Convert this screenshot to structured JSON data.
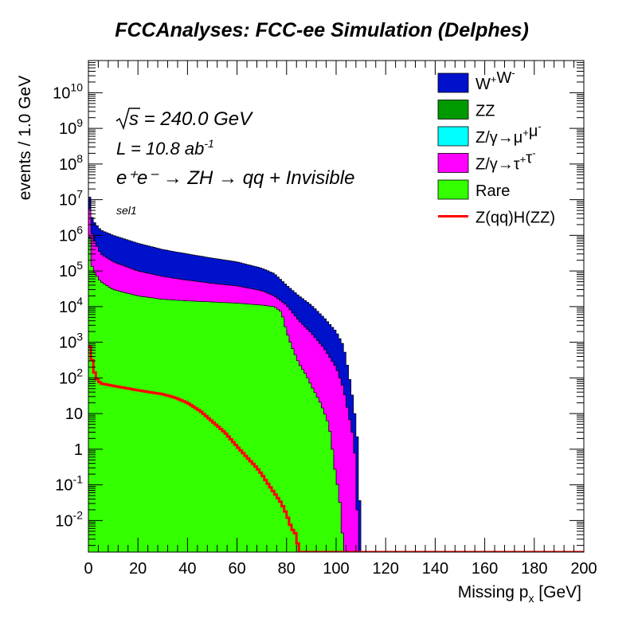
{
  "chart_data": {
    "type": "area",
    "title": "FCCAnalyses: FCC-ee Simulation (Delphes)",
    "xlabel": "Missing p_x [GeV]",
    "ylabel": "events / 1.0 GeV",
    "xlim": [
      0,
      200
    ],
    "ylim": [
      0.0013,
      80000000000.0
    ],
    "yscale": "log",
    "grid": false,
    "legend_position": "top-right",
    "x_ticks": [
      "0",
      "20",
      "40",
      "60",
      "80",
      "100",
      "120",
      "140",
      "160",
      "180",
      "200"
    ],
    "y_ticks": [
      {
        "value": 0.01,
        "label": "10^-2"
      },
      {
        "value": 0.1,
        "label": "10^-1"
      },
      {
        "value": 1,
        "label": "1"
      },
      {
        "value": 10,
        "label": "10"
      },
      {
        "value": 100,
        "label": "10^2"
      },
      {
        "value": 1000,
        "label": "10^3"
      },
      {
        "value": 10000,
        "label": "10^4"
      },
      {
        "value": 100000,
        "label": "10^5"
      },
      {
        "value": 1000000,
        "label": "10^6"
      },
      {
        "value": 10000000,
        "label": "10^7"
      },
      {
        "value": 100000000,
        "label": "10^8"
      },
      {
        "value": 1000000000,
        "label": "10^9"
      },
      {
        "value": 10000000000,
        "label": "10^10"
      }
    ],
    "annotations": {
      "sqrt_s": "s = 240.0 GeV",
      "lumi": "L = 10.8 ab",
      "lumi_exp": "-1",
      "process": "e⁺e⁻ → ZH → qq + Invisible",
      "selection": "sel1"
    },
    "stack_order": [
      "Rare",
      "ZZ",
      "Z/γ→μ⁺μ⁻",
      "Z/γ→τ⁺τ⁻",
      "W⁺W⁻"
    ],
    "series": [
      {
        "name": "W⁺W⁻",
        "kind": "stack",
        "color": "#0011cc",
        "points": [
          [
            0,
            35000000.0
          ],
          [
            1,
            4000000.0
          ],
          [
            2,
            2500000.0
          ],
          [
            5,
            1400000.0
          ],
          [
            10,
            1000000.0
          ],
          [
            20,
            600000.0
          ],
          [
            30,
            400000.0
          ],
          [
            40,
            300000.0
          ],
          [
            50,
            230000.0
          ],
          [
            60,
            180000.0
          ],
          [
            70,
            120000.0
          ],
          [
            75,
            85000.0
          ],
          [
            80,
            40000.0
          ],
          [
            85,
            20000.0
          ],
          [
            90,
            11000.0
          ],
          [
            95,
            5000.0
          ],
          [
            100,
            2000.0
          ],
          [
            103,
            800
          ],
          [
            105,
            150
          ],
          [
            107,
            20
          ],
          [
            108,
            5
          ],
          [
            109,
            1
          ],
          [
            110,
            0.0013
          ]
        ]
      },
      {
        "name": "ZZ",
        "kind": "stack",
        "color": "#009900",
        "points": [
          [
            0,
            2500000.0
          ],
          [
            1,
            130000.0
          ],
          [
            2,
            70000.0
          ],
          [
            5,
            30000.0
          ],
          [
            10,
            20000.0
          ],
          [
            20,
            15000.0
          ],
          [
            30,
            13000.0
          ],
          [
            40,
            12500.0
          ],
          [
            50,
            12000.0
          ],
          [
            60,
            11500.0
          ],
          [
            70,
            10000.0
          ],
          [
            75,
            9000.0
          ],
          [
            78,
            6000.0
          ],
          [
            80,
            1500.0
          ],
          [
            82,
            500
          ],
          [
            85,
            150
          ],
          [
            88,
            80
          ],
          [
            90,
            40
          ],
          [
            93,
            15
          ],
          [
            95,
            8
          ],
          [
            97,
            3
          ],
          [
            98,
            1
          ],
          [
            99,
            0.3
          ],
          [
            100,
            0.1
          ],
          [
            101,
            0.05
          ],
          [
            102,
            0.01
          ],
          [
            103,
            0.0013
          ]
        ]
      },
      {
        "name": "Z/γ→μ⁺μ⁻",
        "kind": "stack",
        "color": "#00ffff",
        "points": [
          [
            0,
            2800000.0
          ],
          [
            1,
            150000.0
          ],
          [
            2,
            80000.0
          ],
          [
            5,
            33000.0
          ],
          [
            10,
            22000.0
          ],
          [
            20,
            16000.0
          ],
          [
            30,
            13500.0
          ],
          [
            40,
            12800.0
          ],
          [
            50,
            12200.0
          ],
          [
            60,
            11700.0
          ],
          [
            70,
            10200.0
          ],
          [
            75,
            9200.0
          ],
          [
            78,
            6200.0
          ],
          [
            80,
            1600.0
          ],
          [
            82,
            550
          ],
          [
            85,
            170
          ],
          [
            88,
            90
          ],
          [
            90,
            45
          ],
          [
            93,
            18
          ],
          [
            95,
            9
          ],
          [
            97,
            3.5
          ],
          [
            98,
            1.2
          ],
          [
            99,
            0.4
          ],
          [
            100,
            0.15
          ],
          [
            101,
            0.07
          ],
          [
            102,
            0.015
          ],
          [
            103,
            0.0013
          ]
        ]
      },
      {
        "name": "Z/γ→τ⁺τ⁻",
        "kind": "stack",
        "color": "#ff00ff",
        "points": [
          [
            0,
            20000000.0
          ],
          [
            1,
            1500000.0
          ],
          [
            2,
            800000.0
          ],
          [
            5,
            300000.0
          ],
          [
            10,
            180000.0
          ],
          [
            20,
            100000.0
          ],
          [
            30,
            70000.0
          ],
          [
            40,
            55000.0
          ],
          [
            50,
            45000.0
          ],
          [
            60,
            38000.0
          ],
          [
            70,
            28000.0
          ],
          [
            75,
            20000.0
          ],
          [
            80,
            11000.0
          ],
          [
            85,
            4000.0
          ],
          [
            90,
            1800.0
          ],
          [
            95,
            700
          ],
          [
            100,
            200
          ],
          [
            103,
            50
          ],
          [
            105,
            10
          ],
          [
            107,
            2
          ],
          [
            108,
            0.3
          ],
          [
            109,
            0.0013
          ]
        ]
      },
      {
        "name": "Rare",
        "kind": "stack",
        "color": "#33ff00",
        "points": [
          [
            0,
            4000000.0
          ],
          [
            1,
            180000.0
          ],
          [
            2,
            100000.0
          ],
          [
            5,
            50000.0
          ],
          [
            10,
            30000.0
          ],
          [
            20,
            20000.0
          ],
          [
            30,
            16000.0
          ],
          [
            40,
            14500.0
          ],
          [
            50,
            13500.0
          ],
          [
            60,
            12500.0
          ],
          [
            70,
            11000.0
          ],
          [
            75,
            10000.0
          ],
          [
            78,
            7000.0
          ],
          [
            80,
            2000.0
          ],
          [
            82,
            800
          ],
          [
            85,
            250
          ],
          [
            88,
            120
          ],
          [
            90,
            60
          ],
          [
            93,
            25
          ],
          [
            95,
            12
          ],
          [
            97,
            5
          ],
          [
            98,
            2
          ],
          [
            99,
            0.5
          ],
          [
            100,
            0.15
          ],
          [
            101,
            0.07
          ],
          [
            102,
            0.015
          ],
          [
            103,
            0.0013
          ]
        ]
      },
      {
        "name": "Z(qq)H(ZZ)",
        "kind": "line",
        "color": "#ff0000",
        "points": [
          [
            0,
            1200
          ],
          [
            1,
            500
          ],
          [
            2,
            200
          ],
          [
            3,
            100
          ],
          [
            5,
            70
          ],
          [
            10,
            60
          ],
          [
            20,
            45
          ],
          [
            30,
            35
          ],
          [
            35,
            28
          ],
          [
            40,
            20
          ],
          [
            45,
            12
          ],
          [
            50,
            6
          ],
          [
            55,
            3
          ],
          [
            60,
            1.2
          ],
          [
            65,
            0.5
          ],
          [
            68,
            0.3
          ],
          [
            70,
            0.2
          ],
          [
            72,
            0.12
          ],
          [
            75,
            0.06
          ],
          [
            78,
            0.03
          ],
          [
            80,
            0.015
          ],
          [
            82,
            0.006
          ],
          [
            84,
            0.004
          ],
          [
            85,
            0.0013
          ],
          [
            200,
            0.0013
          ]
        ]
      }
    ],
    "legend_label_parts": [
      [
        [
          "W",
          ""
        ],
        [
          "+",
          "sup"
        ],
        [
          "W",
          ""
        ],
        [
          "-",
          "sup"
        ]
      ],
      [
        [
          "ZZ",
          ""
        ]
      ],
      [
        [
          "Z/γ→μ",
          ""
        ],
        [
          "+",
          "sup"
        ],
        [
          "μ",
          ""
        ],
        [
          "-",
          "sup"
        ]
      ],
      [
        [
          "Z/γ→τ",
          ""
        ],
        [
          "+",
          "sup"
        ],
        [
          "τ",
          ""
        ],
        [
          "-",
          "sup"
        ]
      ],
      [
        [
          "Rare",
          ""
        ]
      ],
      [
        [
          "Z(qq)H(ZZ)",
          ""
        ]
      ]
    ]
  }
}
